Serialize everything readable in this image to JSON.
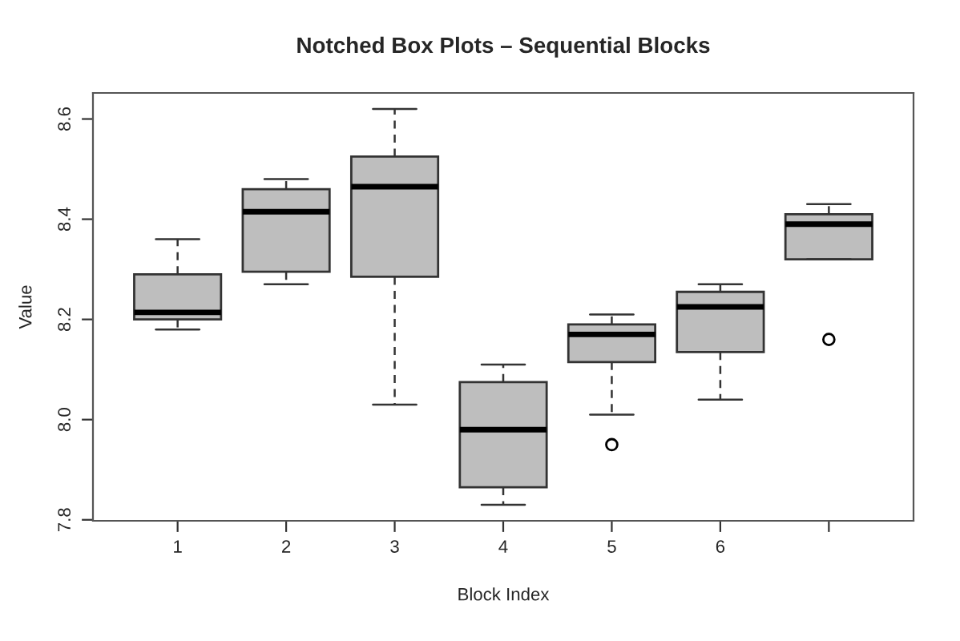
{
  "chart_data": {
    "type": "box",
    "title": "Notched Box Plots – Sequential Blocks",
    "xlabel": "Block Index",
    "ylabel": "Value",
    "categories": [
      "1",
      "2",
      "3",
      "4",
      "5",
      "6",
      null
    ],
    "boxes": [
      {
        "low": 8.18,
        "q1": 8.2,
        "median": 8.214,
        "q3": 8.29,
        "high": 8.36
      },
      {
        "low": 8.27,
        "q1": 8.295,
        "median": 8.415,
        "q3": 8.46,
        "high": 8.48
      },
      {
        "low": 8.03,
        "q1": 8.285,
        "median": 8.465,
        "q3": 8.525,
        "high": 8.62
      },
      {
        "low": 7.83,
        "q1": 7.865,
        "median": 7.98,
        "q3": 8.075,
        "high": 8.11
      },
      {
        "low": 8.01,
        "q1": 8.115,
        "median": 8.17,
        "q3": 8.19,
        "high": 8.21,
        "outliers": [
          7.95
        ]
      },
      {
        "low": 8.04,
        "q1": 8.135,
        "median": 8.225,
        "q3": 8.255,
        "high": 8.27
      },
      {
        "low": 8.32,
        "q1": 8.32,
        "median": 8.39,
        "q3": 8.41,
        "high": 8.43,
        "outliers": [
          8.16
        ]
      }
    ],
    "color": "#bebebe",
    "ylim": [
      7.798,
      8.652
    ],
    "yticks": [
      7.8,
      {
        "value": 8.0,
        "label": "8.0"
      },
      8.2,
      8.4,
      8.6
    ],
    "grid": false
  }
}
